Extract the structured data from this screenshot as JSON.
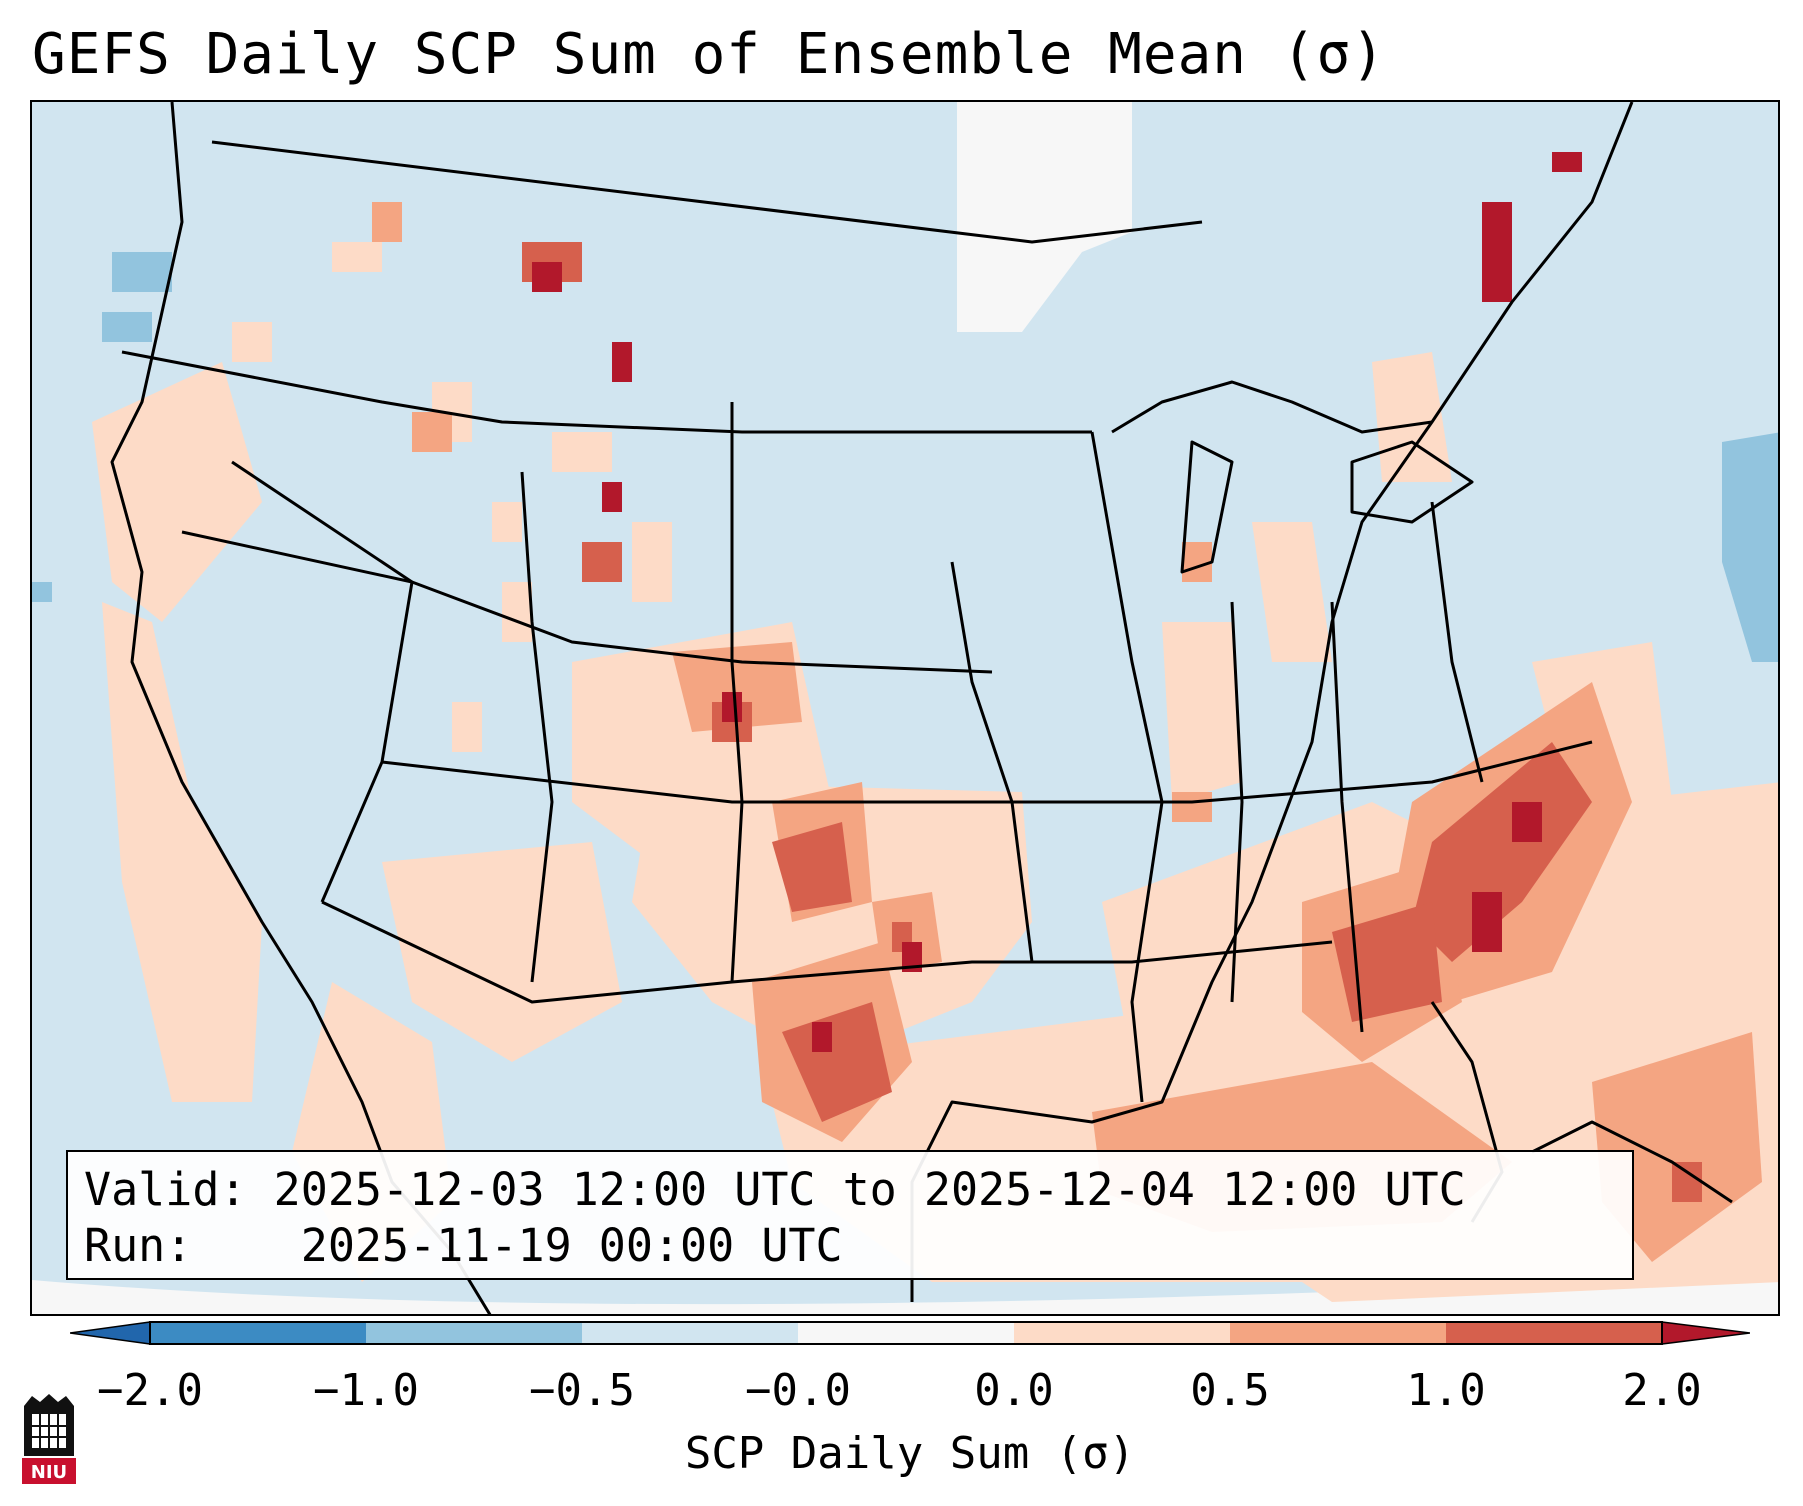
{
  "header": {
    "title": "GEFS Daily SCP Sum of Ensemble Mean (σ)"
  },
  "info": {
    "valid_label": "Valid:",
    "valid_value": "2025-12-03 12:00 UTC to 2025-12-04 12:00 UTC",
    "run_label": "Run:",
    "run_value": "2025-11-19 00:00 UTC"
  },
  "colorbar": {
    "title": "SCP Daily Sum (σ)",
    "tick_labels": [
      "−2.0",
      "−1.0",
      "−0.5",
      "−0.0",
      "0.0",
      "0.5",
      "1.0",
      "2.0"
    ],
    "bins": [
      {
        "from": -2.0,
        "to": -1.0,
        "color": "#3c8bc3"
      },
      {
        "from": -1.0,
        "to": -0.5,
        "color": "#92c4de"
      },
      {
        "from": -0.5,
        "to": -0.0,
        "color": "#d1e5f0"
      },
      {
        "from": -0.0,
        "to": 0.0,
        "color": "#f7f7f7"
      },
      {
        "from": 0.0,
        "to": 0.5,
        "color": "#fddbc7"
      },
      {
        "from": 0.5,
        "to": 1.0,
        "color": "#f4a582"
      },
      {
        "from": 1.0,
        "to": 2.0,
        "color": "#d6604d"
      }
    ],
    "under_color": "#2166ac",
    "over_color": "#b2182b"
  },
  "colors": {
    "background": "#d1e5f0",
    "level_light": "#fddbc7",
    "level_mid": "#f4a582",
    "level_high": "#d6604d",
    "level_max": "#b2182b",
    "neg_mid": "#92c4de",
    "neutral": "#f7f7f7"
  },
  "logo": {
    "text": "NIU",
    "icon": "niu-logo-icon"
  }
}
